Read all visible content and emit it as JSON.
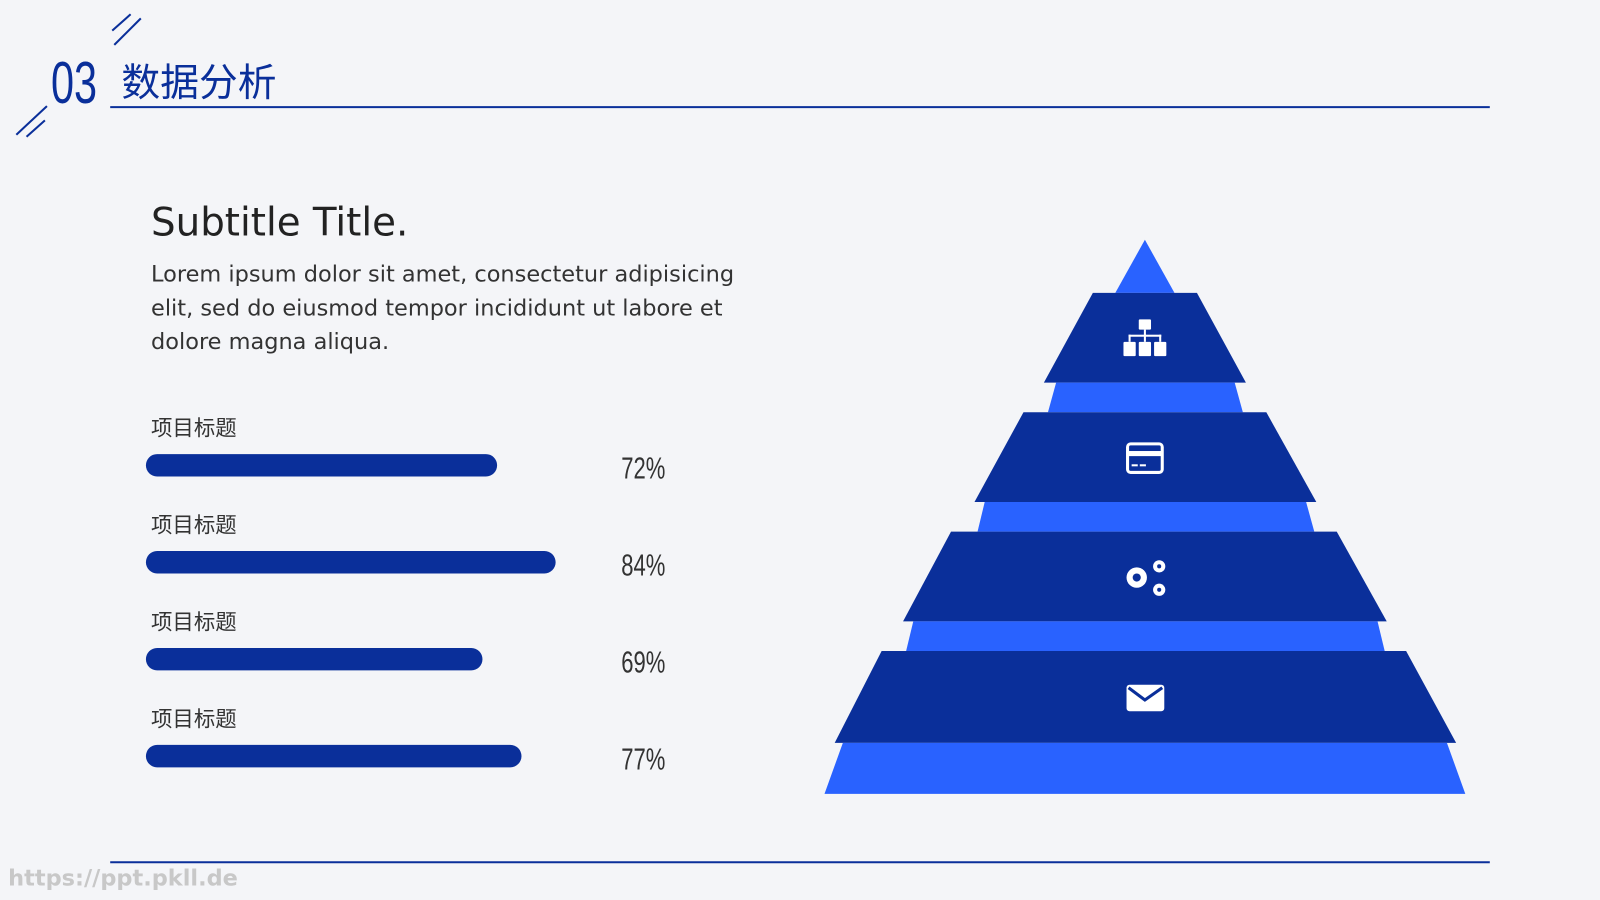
{
  "header": {
    "number": "03",
    "title": "数据分析"
  },
  "subtitle": "Subtitle Title.",
  "body": [
    "Lorem ipsum dolor sit amet, consectetur adipisicing",
    "elit, sed do eiusmod tempor incididunt ut labore et",
    "dolore magna aliqua."
  ],
  "items": [
    {
      "label": "项目标题",
      "value": {
        "value": 72,
        "label": "72%"
      }
    },
    {
      "label": "项目标题",
      "value": {
        "value": 84,
        "label": "84%"
      }
    },
    {
      "label": "项目标题",
      "value": {
        "value": 69,
        "label": "69%"
      }
    },
    {
      "label": "项目标题",
      "value": {
        "value": 77,
        "label": "77%"
      }
    }
  ],
  "watermark": "https://ppt.pkll.de"
}
